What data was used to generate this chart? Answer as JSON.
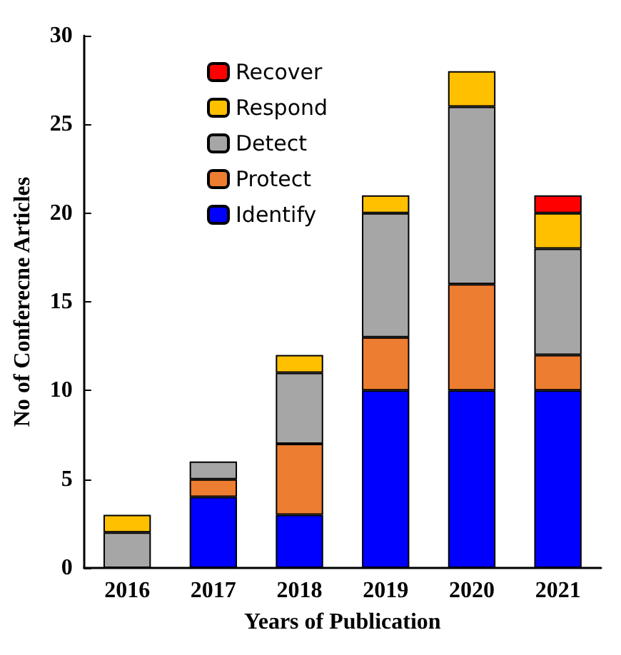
{
  "chart_data": {
    "type": "bar",
    "stacked": true,
    "xlabel": "Years of Publication",
    "ylabel": "No of Conferecne Articles",
    "categories": [
      "2016",
      "2017",
      "2018",
      "2019",
      "2020",
      "2021"
    ],
    "series": [
      {
        "name": "Identify",
        "color": "#0000ff",
        "values": [
          0,
          4,
          3,
          10,
          10,
          10
        ]
      },
      {
        "name": "Protect",
        "color": "#ed7d31",
        "values": [
          0,
          1,
          4,
          3,
          6,
          2
        ]
      },
      {
        "name": "Detect",
        "color": "#a6a6a6",
        "values": [
          2,
          1,
          4,
          7,
          10,
          6
        ]
      },
      {
        "name": "Respond",
        "color": "#ffc000",
        "values": [
          1,
          0,
          1,
          1,
          2,
          2
        ]
      },
      {
        "name": "Recover",
        "color": "#ff0000",
        "values": [
          0,
          0,
          0,
          0,
          0,
          1
        ]
      }
    ],
    "ylim": [
      0,
      30
    ],
    "yticks": [
      0,
      5,
      10,
      15,
      20,
      25,
      30
    ],
    "grid": false,
    "legend": "top left"
  }
}
